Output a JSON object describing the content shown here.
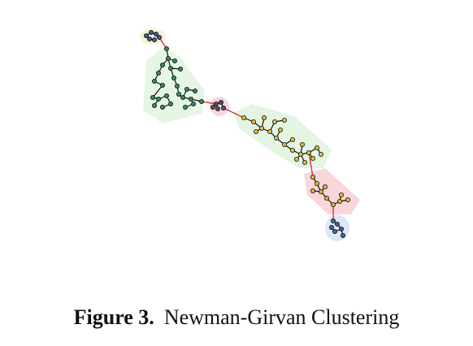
{
  "figure": {
    "label": "Figure 3.",
    "caption": "Newman-Girvan Clustering"
  }
}
